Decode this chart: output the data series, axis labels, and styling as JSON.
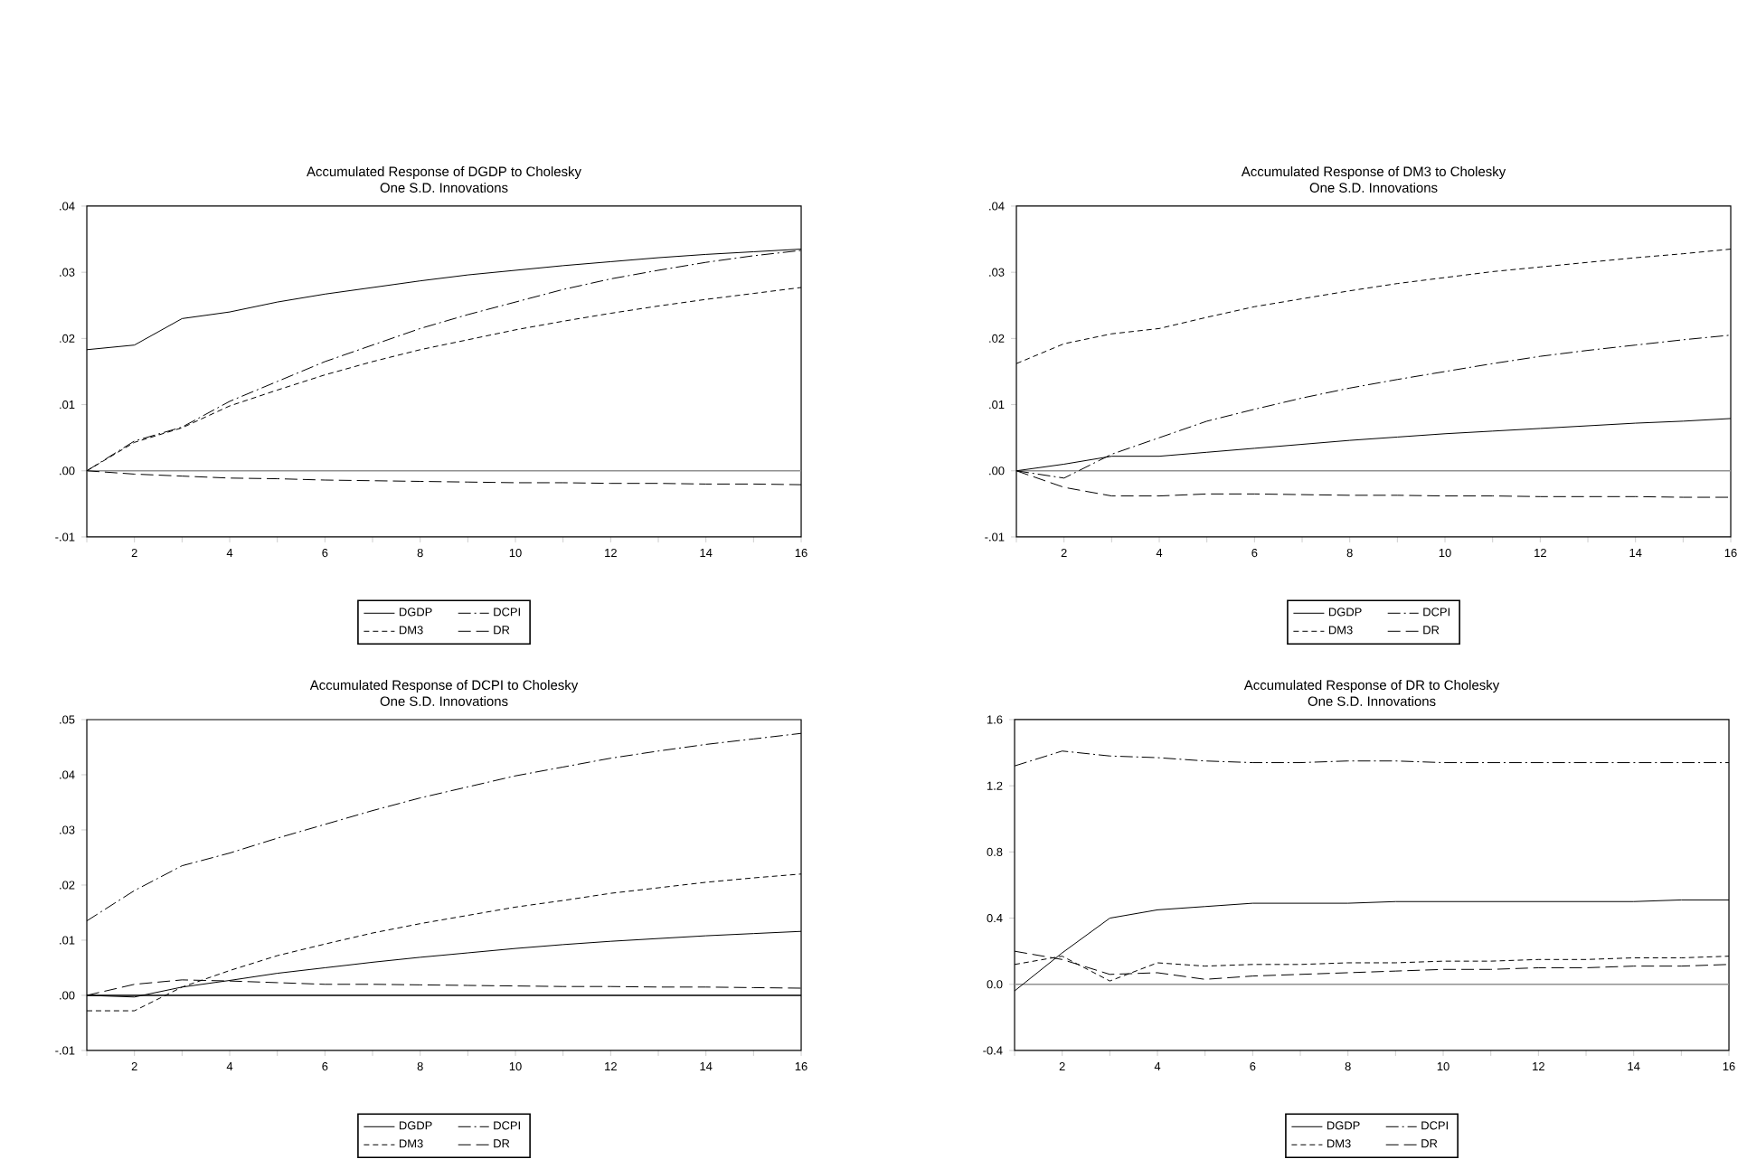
{
  "chart_data": [
    {
      "type": "line",
      "title": "Accumulated Response of DGDP to Cholesky",
      "subtitle": "One S.D. Innovations",
      "x": [
        1,
        2,
        3,
        4,
        5,
        6,
        7,
        8,
        9,
        10,
        11,
        12,
        13,
        14,
        15,
        16
      ],
      "xlim": [
        1,
        16
      ],
      "xticks": [
        {
          "value": 1,
          "label": null
        },
        2,
        {
          "value": 3,
          "label": null
        },
        4,
        {
          "value": 5,
          "label": null
        },
        6,
        {
          "value": 7,
          "label": null
        },
        8,
        {
          "value": 9,
          "label": null
        },
        10,
        {
          "value": 11,
          "label": null
        },
        12,
        {
          "value": 13,
          "label": null
        },
        14,
        {
          "value": 15,
          "label": null
        },
        16
      ],
      "ylim": [
        -0.01,
        0.04
      ],
      "yticks": [
        {
          "value": -0.01,
          "label": "-.01"
        },
        {
          "value": 0,
          "label": ".00"
        },
        {
          "value": 0.01,
          "label": ".01"
        },
        {
          "value": 0.02,
          "label": ".02"
        },
        {
          "value": 0.03,
          "label": ".03"
        },
        {
          "value": 0.04,
          "label": ".04"
        }
      ],
      "legend": "bottom",
      "ref_lines": [
        {
          "axis": "y",
          "value": 0,
          "color": "#909090"
        }
      ],
      "series": [
        {
          "name": "DGDP",
          "color": "#000000",
          "line_style": "solid",
          "values": [
            0.0183,
            0.019,
            0.023,
            0.024,
            0.0255,
            0.0267,
            0.0277,
            0.0287,
            0.0296,
            0.0303,
            0.031,
            0.0316,
            0.0322,
            0.0327,
            0.0331,
            0.0335
          ]
        },
        {
          "name": "DCPI",
          "color": "#000000",
          "line_style": "dashdot",
          "values": [
            0,
            0.0045,
            0.0066,
            0.0105,
            0.0135,
            0.0165,
            0.019,
            0.0215,
            0.0236,
            0.0255,
            0.0274,
            0.029,
            0.0303,
            0.0315,
            0.0325,
            0.0333
          ]
        },
        {
          "name": "DM3",
          "color": "#000000",
          "line_style": "dashed",
          "values": [
            0,
            0.0043,
            0.0065,
            0.0098,
            0.0122,
            0.0145,
            0.0165,
            0.0183,
            0.0198,
            0.0213,
            0.0226,
            0.0238,
            0.0249,
            0.0259,
            0.0268,
            0.0277
          ]
        },
        {
          "name": "DR",
          "color": "#000000",
          "line_style": "longdashed",
          "values": [
            0,
            -0.0005,
            -0.0008,
            -0.0011,
            -0.0012,
            -0.0014,
            -0.0015,
            -0.0016,
            -0.0017,
            -0.0018,
            -0.0018,
            -0.0019,
            -0.0019,
            -0.002,
            -0.002,
            -0.0021
          ]
        }
      ]
    },
    {
      "type": "line",
      "title": "Accumulated Response of DM3 to Cholesky",
      "subtitle": "One S.D. Innovations",
      "x": [
        1,
        2,
        3,
        4,
        5,
        6,
        7,
        8,
        9,
        10,
        11,
        12,
        13,
        14,
        15,
        16
      ],
      "xlim": [
        1,
        16
      ],
      "xticks": [
        {
          "value": 1,
          "label": null
        },
        2,
        {
          "value": 3,
          "label": null
        },
        4,
        {
          "value": 5,
          "label": null
        },
        6,
        {
          "value": 7,
          "label": null
        },
        8,
        {
          "value": 9,
          "label": null
        },
        10,
        {
          "value": 11,
          "label": null
        },
        12,
        {
          "value": 13,
          "label": null
        },
        14,
        {
          "value": 15,
          "label": null
        },
        16
      ],
      "ylim": [
        -0.01,
        0.04
      ],
      "yticks": [
        {
          "value": -0.01,
          "label": "-.01"
        },
        {
          "value": 0,
          "label": ".00"
        },
        {
          "value": 0.01,
          "label": ".01"
        },
        {
          "value": 0.02,
          "label": ".02"
        },
        {
          "value": 0.03,
          "label": ".03"
        },
        {
          "value": 0.04,
          "label": ".04"
        }
      ],
      "legend": "bottom",
      "ref_lines": [
        {
          "axis": "y",
          "value": 0,
          "color": "#909090"
        }
      ],
      "series": [
        {
          "name": "DGDP",
          "color": "#000000",
          "line_style": "solid",
          "values": [
            0,
            0.001,
            0.0022,
            0.0022,
            0.0028,
            0.0034,
            0.004,
            0.0046,
            0.0051,
            0.0056,
            0.006,
            0.0064,
            0.0068,
            0.0072,
            0.0075,
            0.0079
          ]
        },
        {
          "name": "DCPI",
          "color": "#000000",
          "line_style": "dashdot",
          "values": [
            0,
            -0.0011,
            0.0025,
            0.005,
            0.0075,
            0.0093,
            0.011,
            0.0125,
            0.0138,
            0.015,
            0.0162,
            0.0173,
            0.0182,
            0.019,
            0.0198,
            0.0205
          ]
        },
        {
          "name": "DM3",
          "color": "#000000",
          "line_style": "dashed",
          "values": [
            0.0162,
            0.0192,
            0.0207,
            0.0215,
            0.0232,
            0.0248,
            0.026,
            0.0272,
            0.0283,
            0.0292,
            0.0301,
            0.0308,
            0.0315,
            0.0322,
            0.0328,
            0.0335
          ]
        },
        {
          "name": "DR",
          "color": "#000000",
          "line_style": "longdashed",
          "values": [
            0,
            -0.0025,
            -0.0038,
            -0.0038,
            -0.0035,
            -0.0035,
            -0.0036,
            -0.0037,
            -0.0037,
            -0.0038,
            -0.0038,
            -0.0039,
            -0.0039,
            -0.0039,
            -0.004,
            -0.004
          ]
        }
      ]
    },
    {
      "type": "line",
      "title": "Accumulated Response of DCPI to Cholesky",
      "subtitle": "One S.D. Innovations",
      "x": [
        1,
        2,
        3,
        4,
        5,
        6,
        7,
        8,
        9,
        10,
        11,
        12,
        13,
        14,
        15,
        16
      ],
      "xlim": [
        1,
        16
      ],
      "xticks": [
        {
          "value": 1,
          "label": null
        },
        2,
        {
          "value": 3,
          "label": null
        },
        4,
        {
          "value": 5,
          "label": null
        },
        6,
        {
          "value": 7,
          "label": null
        },
        8,
        {
          "value": 9,
          "label": null
        },
        10,
        {
          "value": 11,
          "label": null
        },
        12,
        {
          "value": 13,
          "label": null
        },
        14,
        {
          "value": 15,
          "label": null
        },
        16
      ],
      "ylim": [
        -0.01,
        0.05
      ],
      "yticks": [
        {
          "value": -0.01,
          "label": "-.01"
        },
        {
          "value": 0,
          "label": ".00"
        },
        {
          "value": 0.01,
          "label": ".01"
        },
        {
          "value": 0.02,
          "label": ".02"
        },
        {
          "value": 0.03,
          "label": ".03"
        },
        {
          "value": 0.04,
          "label": ".04"
        },
        {
          "value": 0.05,
          "label": ".05"
        }
      ],
      "legend": "bottom",
      "ref_lines": [
        {
          "axis": "y",
          "value": 0,
          "color": "#000000"
        }
      ],
      "series": [
        {
          "name": "DGDP",
          "color": "#000000",
          "line_style": "solid",
          "values": [
            0,
            -0.0003,
            0.0015,
            0.0027,
            0.004,
            0.005,
            0.006,
            0.0069,
            0.0077,
            0.0085,
            0.0092,
            0.0098,
            0.0103,
            0.0108,
            0.0112,
            0.0116
          ]
        },
        {
          "name": "DCPI",
          "color": "#000000",
          "line_style": "dashdot",
          "values": [
            0.0135,
            0.019,
            0.0235,
            0.0258,
            0.0285,
            0.031,
            0.0335,
            0.0358,
            0.0378,
            0.0398,
            0.0414,
            0.043,
            0.0443,
            0.0455,
            0.0465,
            0.0475
          ]
        },
        {
          "name": "DM3",
          "color": "#000000",
          "line_style": "dashed",
          "values": [
            -0.0028,
            -0.0028,
            0.0015,
            0.0045,
            0.0072,
            0.0093,
            0.0113,
            0.013,
            0.0145,
            0.016,
            0.0172,
            0.0185,
            0.0195,
            0.0205,
            0.0213,
            0.022
          ]
        },
        {
          "name": "DR",
          "color": "#000000",
          "line_style": "longdashed",
          "values": [
            0,
            0.002,
            0.0028,
            0.0026,
            0.0023,
            0.002,
            0.002,
            0.0019,
            0.0018,
            0.0017,
            0.0016,
            0.0016,
            0.0015,
            0.0015,
            0.0014,
            0.0013
          ]
        }
      ]
    },
    {
      "type": "line",
      "title": "Accumulated Response of DR to Cholesky",
      "subtitle": "One S.D. Innovations",
      "x": [
        1,
        2,
        3,
        4,
        5,
        6,
        7,
        8,
        9,
        10,
        11,
        12,
        13,
        14,
        15,
        16
      ],
      "xlim": [
        1,
        16
      ],
      "xticks": [
        {
          "value": 1,
          "label": null
        },
        2,
        {
          "value": 3,
          "label": null
        },
        4,
        {
          "value": 5,
          "label": null
        },
        6,
        {
          "value": 7,
          "label": null
        },
        8,
        {
          "value": 9,
          "label": null
        },
        10,
        {
          "value": 11,
          "label": null
        },
        12,
        {
          "value": 13,
          "label": null
        },
        14,
        {
          "value": 15,
          "label": null
        },
        16
      ],
      "ylim": [
        -0.4,
        1.6
      ],
      "yticks": [
        -0.4,
        {
          "value": 0,
          "label": "0.0"
        },
        0.4,
        0.8,
        1.2,
        1.6
      ],
      "legend": "bottom",
      "ref_lines": [
        {
          "axis": "y",
          "value": 0,
          "color": "#909090"
        }
      ],
      "series": [
        {
          "name": "DGDP",
          "color": "#000000",
          "line_style": "solid",
          "values": [
            -0.04,
            0.19,
            0.4,
            0.45,
            0.47,
            0.49,
            0.49,
            0.49,
            0.5,
            0.5,
            0.5,
            0.5,
            0.5,
            0.5,
            0.51,
            0.51
          ]
        },
        {
          "name": "DCPI",
          "color": "#000000",
          "line_style": "dashdot",
          "values": [
            1.32,
            1.41,
            1.38,
            1.37,
            1.35,
            1.34,
            1.34,
            1.35,
            1.35,
            1.34,
            1.34,
            1.34,
            1.34,
            1.34,
            1.34,
            1.34
          ]
        },
        {
          "name": "DM3",
          "color": "#000000",
          "line_style": "dashed",
          "values": [
            0.12,
            0.17,
            0.02,
            0.13,
            0.11,
            0.12,
            0.12,
            0.13,
            0.13,
            0.14,
            0.14,
            0.15,
            0.15,
            0.16,
            0.16,
            0.17
          ]
        },
        {
          "name": "DR",
          "color": "#000000",
          "line_style": "longdashed",
          "values": [
            0.2,
            0.15,
            0.06,
            0.07,
            0.03,
            0.05,
            0.06,
            0.07,
            0.08,
            0.09,
            0.09,
            0.1,
            0.1,
            0.11,
            0.11,
            0.12
          ]
        }
      ]
    }
  ]
}
